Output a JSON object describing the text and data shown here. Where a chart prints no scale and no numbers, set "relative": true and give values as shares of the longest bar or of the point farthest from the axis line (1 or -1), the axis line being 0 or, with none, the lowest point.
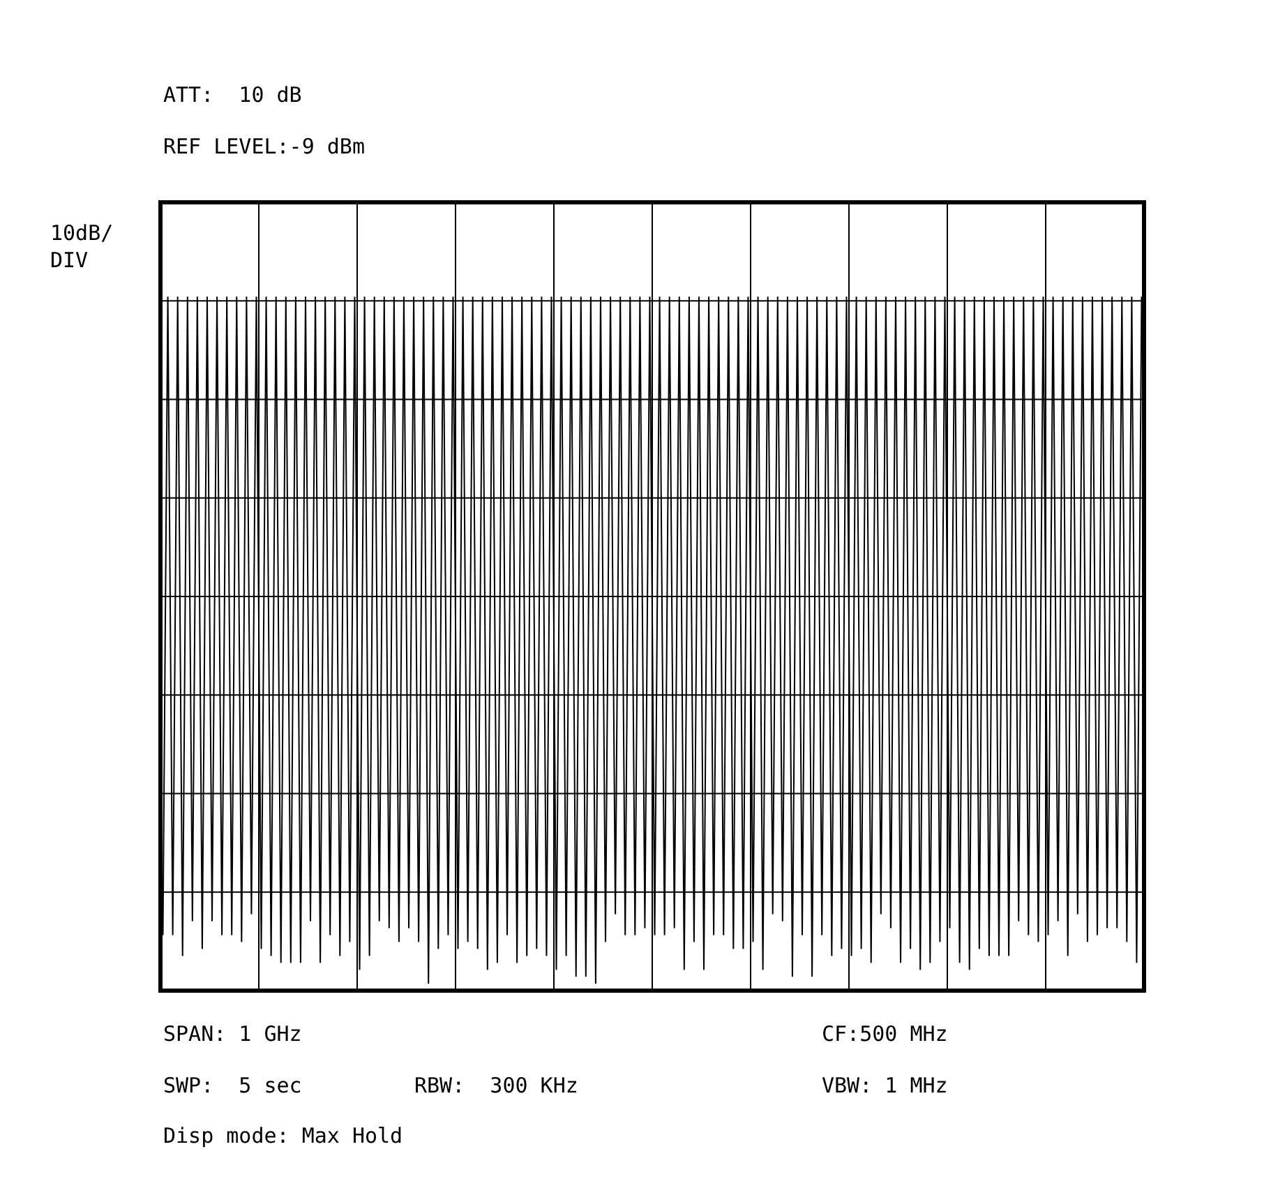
{
  "chart_data": {
    "type": "line",
    "relative": true,
    "ylabel": "10dB/\nDIV",
    "color": "#000000",
    "grid": true,
    "marker": "none",
    "line_style": "solid",
    "annotations": [
      "ATT:  10 dB",
      "REF LEVEL:-9 dBm",
      "SPAN: 1 GHz",
      "CF:500 MHz",
      "SWP:  5 sec",
      "RBW:  300 KHz",
      "VBW: 1 MHz",
      "Disp mode: Max Hold"
    ],
    "categories": [
      null,
      null,
      null,
      null,
      null,
      null,
      null,
      null,
      null,
      null,
      null,
      null,
      null,
      null,
      null,
      null,
      null,
      null,
      null,
      null,
      null,
      null,
      null,
      null,
      null,
      null,
      null,
      null,
      null,
      null,
      null,
      null,
      null,
      null,
      null,
      null,
      null,
      null,
      null,
      null,
      null,
      null,
      null,
      null,
      null,
      null,
      null,
      null,
      null,
      null,
      null,
      null,
      null,
      null,
      null,
      null,
      null,
      null,
      null,
      null,
      null,
      null,
      null,
      null,
      null,
      null,
      null,
      null,
      null,
      null,
      null,
      null,
      null,
      null,
      null,
      null,
      null,
      null,
      null,
      null,
      null,
      null,
      null,
      null,
      null,
      null,
      null,
      null,
      null,
      null,
      null,
      null,
      null,
      null,
      null,
      null,
      null,
      null,
      null,
      null,
      null,
      null,
      null,
      null,
      null,
      null,
      null,
      null,
      null,
      null,
      null,
      null,
      null,
      null,
      null,
      null,
      null,
      null,
      null,
      null,
      null,
      null,
      null,
      null,
      null,
      null,
      null,
      null,
      null,
      null,
      null,
      null,
      null,
      null,
      null,
      null,
      null,
      null,
      null,
      null,
      null,
      null,
      null,
      null,
      null,
      null,
      null,
      null,
      null,
      null,
      null,
      null,
      null,
      null,
      null,
      null,
      null,
      null,
      null,
      null,
      null,
      null,
      null,
      null,
      null,
      null,
      null,
      null,
      null,
      null,
      null,
      null,
      null,
      null,
      null,
      null,
      null,
      null,
      null,
      null,
      null,
      null,
      null,
      null,
      null,
      null,
      null,
      null,
      null,
      null,
      null,
      null,
      null,
      null,
      null,
      null,
      null,
      null,
      null,
      null
    ],
    "values": [
      0.08,
      1,
      0.08,
      1,
      0.05,
      1,
      0.1,
      1,
      0.06,
      1,
      0.1,
      1,
      0.08,
      1,
      0.08,
      1,
      0.07,
      1,
      0.11,
      1,
      0.06,
      1,
      0.05,
      1,
      0.04,
      1,
      0.04,
      1,
      0.04,
      1,
      0.1,
      1,
      0.04,
      1,
      0.08,
      1,
      0.05,
      1,
      0.07,
      1,
      0.03,
      1,
      0.05,
      1,
      0.1,
      1,
      0.09,
      1,
      0.07,
      1,
      0.09,
      1,
      0.07,
      1,
      0.01,
      1,
      0.06,
      1,
      0.08,
      1,
      0.06,
      1,
      0.07,
      1,
      0.06,
      1,
      0.03,
      1,
      0.04,
      1,
      0.08,
      1,
      0.04,
      1,
      0.05,
      1,
      0.06,
      1,
      0.05,
      1,
      0.03,
      1,
      0.05,
      1,
      0.02,
      1,
      0.02,
      1,
      0.01,
      1,
      0.07,
      1,
      0.11,
      1,
      0.08,
      1,
      0.08,
      1,
      0.09,
      1,
      0.08,
      1,
      0.08,
      1,
      0.09,
      1,
      0.03,
      1,
      0.07,
      1,
      0.03,
      1,
      0.08,
      1,
      0.08,
      1,
      0.06,
      1,
      0.06,
      1,
      0.07,
      1,
      0.03,
      1,
      0.11,
      1,
      0.1,
      1,
      0.02,
      1,
      0.08,
      1,
      0.02,
      1,
      0.08,
      1,
      0.05,
      1,
      0.06,
      1,
      0.05,
      1,
      0.06,
      1,
      0.04,
      1,
      0.11,
      1,
      0.09,
      1,
      0.04,
      1,
      0.06,
      1,
      0.03,
      1,
      0.04,
      1,
      0.07,
      1,
      0.09,
      1,
      0.04,
      1,
      0.03,
      1,
      0.06,
      1,
      0.05,
      1,
      0.05,
      1,
      0.05,
      1,
      0.1,
      1,
      0.08,
      1,
      0.07,
      1,
      0.08,
      1,
      0.1,
      1,
      0.05,
      1,
      0.11,
      1,
      0.07,
      1,
      0.08,
      1,
      0.09,
      1,
      0.09,
      1,
      0.07,
      1,
      0.04,
      1
    ]
  }
}
